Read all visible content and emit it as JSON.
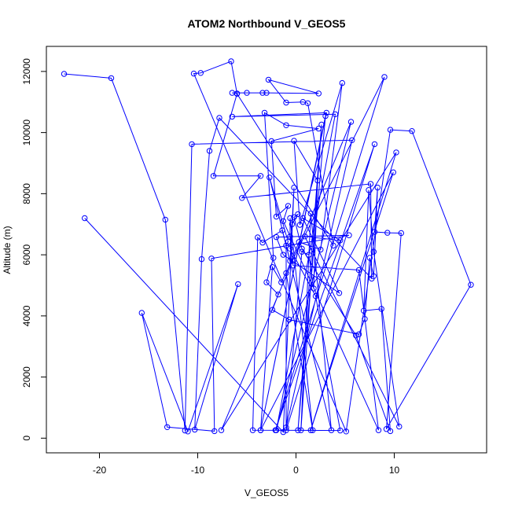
{
  "chart_data": {
    "type": "line",
    "title": "ATOM2 Northbound V_GEOS5",
    "xlabel": "V_GEOS5",
    "ylabel": "Altitude (m)",
    "xlim": [
      -25.4,
      19.4
    ],
    "ylim": [
      -480,
      12820
    ],
    "x_ticks": [
      -20,
      -10,
      0,
      10
    ],
    "y_ticks": [
      0,
      2000,
      4000,
      6000,
      8000,
      10000,
      12000
    ],
    "x_tick_labels": [
      "-20",
      "-10",
      "0",
      "10"
    ],
    "y_tick_labels": [
      "0",
      "2000",
      "4000",
      "6000",
      "8000",
      "10000",
      "12000"
    ],
    "series": [
      {
        "color": "#0000ff",
        "marker": "open-circle",
        "points": [
          {
            "x": -23.6,
            "y": 11920
          },
          {
            "x": -18.8,
            "y": 11780
          },
          {
            "x": -13.3,
            "y": 7150
          },
          {
            "x": -11.3,
            "y": 250
          },
          {
            "x": -10.6,
            "y": 9620
          },
          {
            "x": 5.7,
            "y": 9750
          },
          {
            "x": -1.0,
            "y": 350
          },
          {
            "x": -1.0,
            "y": 6300
          },
          {
            "x": -0.8,
            "y": 6430
          },
          {
            "x": -2.7,
            "y": 8530
          },
          {
            "x": 3.6,
            "y": 260
          },
          {
            "x": 1.5,
            "y": 7350
          },
          {
            "x": 0.5,
            "y": 260
          },
          {
            "x": 2.6,
            "y": 10260
          },
          {
            "x": 0.2,
            "y": 260
          },
          {
            "x": 3.0,
            "y": 10540
          },
          {
            "x": -3.6,
            "y": 260
          },
          {
            "x": 3.1,
            "y": 10650
          },
          {
            "x": -6.5,
            "y": 10520
          },
          {
            "x": 4.0,
            "y": 10600
          },
          {
            "x": -2.0,
            "y": 260
          },
          {
            "x": 5.6,
            "y": 10350
          },
          {
            "x": -7.6,
            "y": 260
          },
          {
            "x": 10.2,
            "y": 9350
          },
          {
            "x": 1.5,
            "y": 260
          },
          {
            "x": 9.9,
            "y": 8700
          },
          {
            "x": -3.6,
            "y": 260
          },
          {
            "x": -2.4,
            "y": 5600
          },
          {
            "x": -1.5,
            "y": 5100
          },
          {
            "x": 9.0,
            "y": 11820
          },
          {
            "x": -2.1,
            "y": 260
          },
          {
            "x": 8.0,
            "y": 9620
          },
          {
            "x": -1.0,
            "y": 260
          },
          {
            "x": 0.6,
            "y": 6100
          },
          {
            "x": 1.3,
            "y": 6000
          },
          {
            "x": 1.8,
            "y": 4900
          },
          {
            "x": 2.2,
            "y": 8430
          },
          {
            "x": -0.2,
            "y": 9730
          },
          {
            "x": 0.4,
            "y": 6980
          },
          {
            "x": 4.7,
            "y": 11620
          },
          {
            "x": 2.5,
            "y": 6170
          },
          {
            "x": 0.3,
            "y": 6420
          },
          {
            "x": -1.0,
            "y": 5400
          },
          {
            "x": 1.7,
            "y": 260
          },
          {
            "x": -0.6,
            "y": 7200
          },
          {
            "x": -0.6,
            "y": 6600
          },
          {
            "x": -0.3,
            "y": 5650
          },
          {
            "x": 6.4,
            "y": 5500
          },
          {
            "x": 8.4,
            "y": 260
          },
          {
            "x": -1.3,
            "y": 7100
          },
          {
            "x": -0.8,
            "y": 7600
          },
          {
            "x": -2.0,
            "y": 7250
          },
          {
            "x": -2.5,
            "y": 9720
          },
          {
            "x": 2.3,
            "y": 10130
          },
          {
            "x": -1.0,
            "y": 10240
          },
          {
            "x": -3.2,
            "y": 10650
          },
          {
            "x": -2.3,
            "y": 5900
          },
          {
            "x": -3.0,
            "y": 5100
          },
          {
            "x": -1.8,
            "y": 4700
          },
          {
            "x": -2.4,
            "y": 4200
          },
          {
            "x": -0.7,
            "y": 3880
          },
          {
            "x": 6.4,
            "y": 3400
          },
          {
            "x": 7.0,
            "y": 3900
          },
          {
            "x": 7.5,
            "y": 5900
          },
          {
            "x": 7.9,
            "y": 5300
          },
          {
            "x": 8.3,
            "y": 8200
          },
          {
            "x": 8.0,
            "y": 6750
          },
          {
            "x": 9.3,
            "y": 6720
          },
          {
            "x": 10.7,
            "y": 6710
          },
          {
            "x": 9.2,
            "y": 300
          },
          {
            "x": 17.8,
            "y": 5020
          },
          {
            "x": 11.8,
            "y": 10050
          },
          {
            "x": 9.6,
            "y": 10090
          },
          {
            "x": 5.1,
            "y": 220
          },
          {
            "x": -10.4,
            "y": 11930
          },
          {
            "x": -9.7,
            "y": 11950
          },
          {
            "x": -6.6,
            "y": 12330
          },
          {
            "x": -6.0,
            "y": 11280
          },
          {
            "x": -6.5,
            "y": 11300
          },
          {
            "x": -5.0,
            "y": 11300
          },
          {
            "x": -3.4,
            "y": 11300
          },
          {
            "x": -3.0,
            "y": 11300
          },
          {
            "x": 2.3,
            "y": 11280
          },
          {
            "x": -2.8,
            "y": 11730
          },
          {
            "x": -1.0,
            "y": 10980
          },
          {
            "x": 0.7,
            "y": 11000
          },
          {
            "x": 1.2,
            "y": 10960
          },
          {
            "x": 3.8,
            "y": 6300
          },
          {
            "x": -6.0,
            "y": 11270
          },
          {
            "x": -8.4,
            "y": 8580
          },
          {
            "x": -3.6,
            "y": 8580
          },
          {
            "x": -5.5,
            "y": 7860
          },
          {
            "x": 7.6,
            "y": 8320
          },
          {
            "x": 7.7,
            "y": 5220
          },
          {
            "x": -7.8,
            "y": 10480
          },
          {
            "x": -8.8,
            "y": 9400
          },
          {
            "x": -9.6,
            "y": 5860
          },
          {
            "x": -10.3,
            "y": 280
          },
          {
            "x": -5.9,
            "y": 5040
          },
          {
            "x": -11.0,
            "y": 220
          },
          {
            "x": -15.7,
            "y": 4100
          },
          {
            "x": -13.1,
            "y": 360
          },
          {
            "x": -8.3,
            "y": 230
          },
          {
            "x": -8.6,
            "y": 5880
          },
          {
            "x": 5.4,
            "y": 6640
          },
          {
            "x": -2.0,
            "y": 6580
          },
          {
            "x": -1.3,
            "y": 6000
          },
          {
            "x": 4.4,
            "y": 4750
          },
          {
            "x": 0.7,
            "y": 7200
          },
          {
            "x": 4.5,
            "y": 6470
          },
          {
            "x": 0.9,
            "y": 6600
          },
          {
            "x": 10.5,
            "y": 380
          },
          {
            "x": 7.9,
            "y": 6100
          },
          {
            "x": 7.4,
            "y": 8120
          },
          {
            "x": 6.9,
            "y": 4170
          },
          {
            "x": 8.7,
            "y": 4230
          },
          {
            "x": 9.6,
            "y": 230
          },
          {
            "x": 6.1,
            "y": 3360
          },
          {
            "x": 0.6,
            "y": 6200
          },
          {
            "x": -0.2,
            "y": 7230
          },
          {
            "x": 0.2,
            "y": 7330
          },
          {
            "x": -0.4,
            "y": 7000
          },
          {
            "x": -0.6,
            "y": 6200
          },
          {
            "x": 2.0,
            "y": 4650
          },
          {
            "x": 4.5,
            "y": 250
          },
          {
            "x": -4.4,
            "y": 260
          },
          {
            "x": -3.9,
            "y": 6570
          },
          {
            "x": -3.4,
            "y": 6400
          },
          {
            "x": -1.4,
            "y": 6800
          },
          {
            "x": -0.6,
            "y": 5800
          },
          {
            "x": -0.2,
            "y": 8200
          },
          {
            "x": -1.3,
            "y": 200
          },
          {
            "x": -21.5,
            "y": 7200
          }
        ]
      }
    ]
  }
}
